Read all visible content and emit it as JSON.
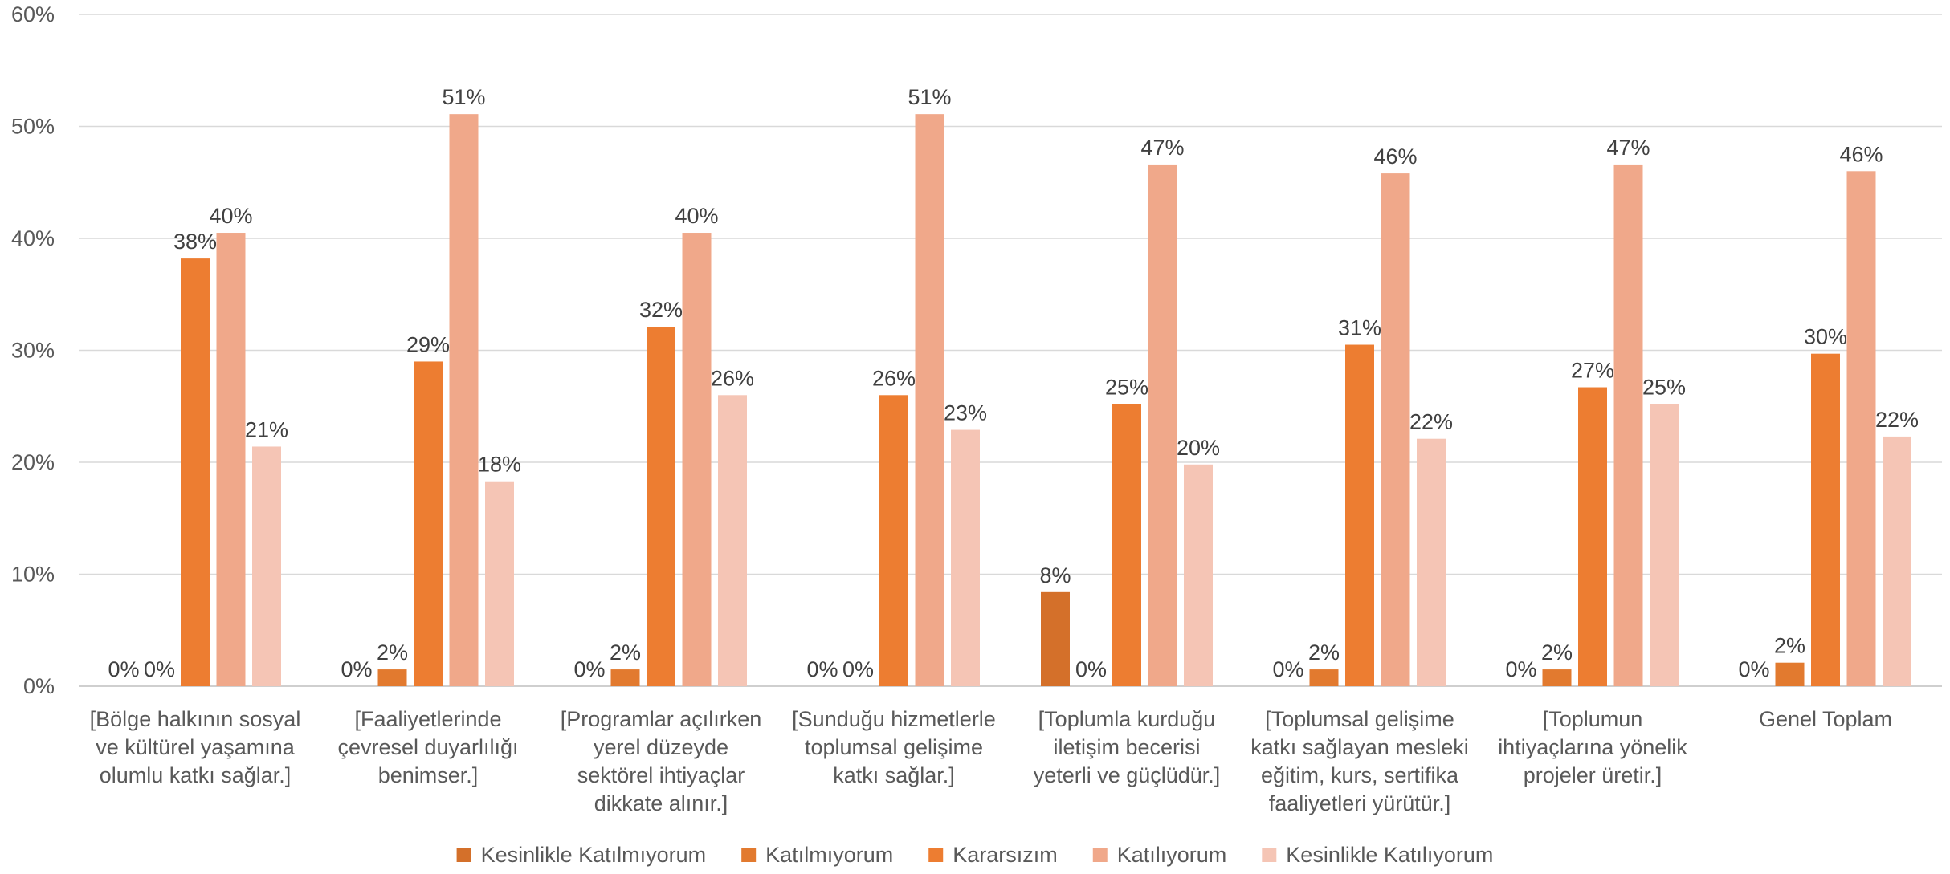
{
  "chart_data": {
    "type": "bar",
    "categories": [
      [
        "[Bölge halkının sosyal",
        "ve kültürel yaşamına",
        "olumlu katkı sağlar.]"
      ],
      [
        "[Faaliyetlerinde",
        "çevresel duyarlılığı",
        "benimser.]"
      ],
      [
        "[Programlar açılırken",
        "yerel düzeyde",
        "sektörel ihtiyaçlar",
        "dikkate alınır.]"
      ],
      [
        "[Sunduğu hizmetlerle",
        "toplumsal gelişime",
        "katkı sağlar.]"
      ],
      [
        "[Toplumla kurduğu",
        "iletişim becerisi",
        "yeterli ve güçlüdür.]"
      ],
      [
        "[Toplumsal gelişime",
        "katkı sağlayan mesleki",
        "eğitim, kurs, sertifika",
        "faaliyetleri yürütür.]"
      ],
      [
        "[Toplumun",
        "ihtiyaçlarına yönelik",
        "projeler üretir.]"
      ],
      [
        "Genel Toplam"
      ]
    ],
    "series": [
      {
        "name": "Kesinlikle Katılmıyorum",
        "color": "#d4702a",
        "values": [
          0,
          0,
          0,
          0,
          8.4,
          0,
          0,
          0
        ],
        "labels": [
          "0%",
          "0%",
          "0%",
          "0%",
          "8%",
          "0%",
          "0%",
          "0%"
        ]
      },
      {
        "name": "Katılmıyorum",
        "color": "#e27a2f",
        "values": [
          0,
          1.5,
          1.5,
          0,
          0,
          1.5,
          1.5,
          2.1
        ],
        "labels": [
          "0%",
          "2%",
          "2%",
          "0%",
          "0%",
          "2%",
          "2%",
          "2%"
        ]
      },
      {
        "name": "Kararsızım",
        "color": "#ed7d31",
        "values": [
          38.2,
          29.0,
          32.1,
          26.0,
          25.2,
          30.5,
          26.7,
          29.7
        ],
        "labels": [
          "38%",
          "29%",
          "32%",
          "26%",
          "25%",
          "31%",
          "27%",
          "30%"
        ]
      },
      {
        "name": "Katılıyorum",
        "color": "#f0a88a",
        "values": [
          40.5,
          51.1,
          40.5,
          51.1,
          46.6,
          45.8,
          46.6,
          46.0
        ],
        "labels": [
          "40%",
          "51%",
          "40%",
          "51%",
          "47%",
          "46%",
          "47%",
          "46%"
        ]
      },
      {
        "name": "Kesinlikle Katılıyorum",
        "color": "#f5c5b5",
        "values": [
          21.4,
          18.3,
          26.0,
          22.9,
          19.8,
          22.1,
          25.2,
          22.3
        ],
        "labels": [
          "21%",
          "18%",
          "26%",
          "23%",
          "20%",
          "22%",
          "25%",
          "22%"
        ]
      }
    ],
    "yticks": [
      "0%",
      "10%",
      "20%",
      "30%",
      "40%",
      "50%",
      "60%"
    ],
    "ylim": [
      0,
      60
    ],
    "grid": true,
    "legend_position": "bottom"
  }
}
